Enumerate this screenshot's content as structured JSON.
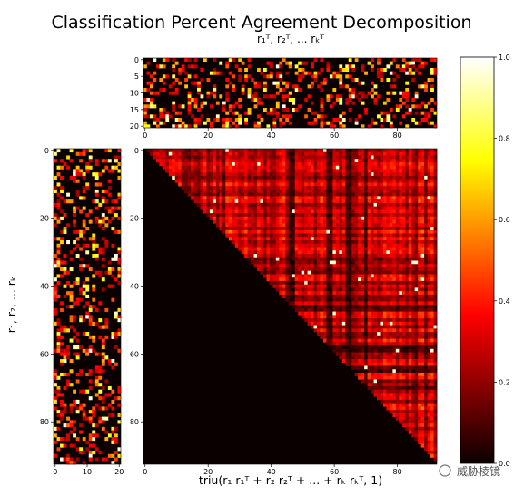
{
  "chart_data": [
    {
      "type": "heatmap",
      "panel": "top",
      "title": "Classification Percent Agreement Decomposition",
      "xlabel": "r₁ᵀ, r₂ᵀ, ... rₖᵀ",
      "rows": 21,
      "cols": 93,
      "x_ticks": [
        "0",
        "20",
        "40",
        "60",
        "80"
      ],
      "y_ticks": [
        "0",
        "5",
        "10",
        "15",
        "20"
      ],
      "value_range": [
        0.0,
        1.0
      ],
      "description_of_values": "sparse: mostly near 0 with scattered values 0.2–1.0"
    },
    {
      "type": "heatmap",
      "panel": "left",
      "ylabel": "r₁, r₂, ... rₖ",
      "rows": 93,
      "cols": 21,
      "x_ticks": [
        "0",
        "10",
        "20"
      ],
      "y_ticks": [
        "0",
        "20",
        "40",
        "60",
        "80"
      ],
      "value_range": [
        0.0,
        1.0
      ]
    },
    {
      "type": "heatmap",
      "panel": "main",
      "xlabel": "triu(r₁ r₁ᵀ + r₂ r₂ᵀ + ... + rₖ rₖᵀ, 1)",
      "rows": 93,
      "cols": 93,
      "x_ticks": [
        "0",
        "20",
        "40",
        "60",
        "80"
      ],
      "y_ticks": [
        "0",
        "20",
        "40",
        "60",
        "80"
      ],
      "lower_triangle_value": 0.0,
      "value_range": [
        0.0,
        1.0
      ]
    },
    {
      "type": "colorbar",
      "colormap": "hot",
      "ticks": [
        "0.0",
        "0.2",
        "0.4",
        "0.6",
        "0.8",
        "1.0"
      ],
      "range": [
        0.0,
        1.0
      ]
    }
  ],
  "watermark": "威胁棱镜"
}
